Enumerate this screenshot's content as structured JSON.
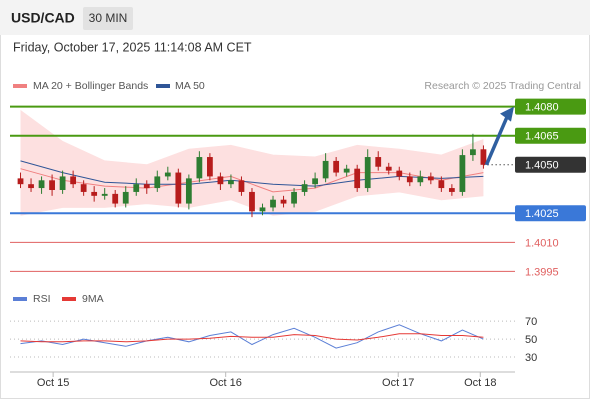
{
  "header": {
    "symbol": "USD/CAD",
    "interval": "30 MIN",
    "timestamp": "Friday, October 17, 2025 11:14:08 AM CET",
    "credit": "Research © 2025 Trading Central"
  },
  "chart_data": [
    {
      "type": "candlestick",
      "x": [
        0,
        1,
        2,
        3,
        4,
        5,
        6,
        7,
        8,
        9,
        10,
        11,
        12,
        13,
        14,
        15,
        16,
        17,
        18,
        19,
        20,
        21,
        22,
        23,
        24,
        25,
        26,
        27,
        28,
        29,
        30,
        31,
        32,
        33,
        34,
        35,
        36,
        37,
        38,
        39,
        40,
        41,
        42,
        43,
        44
      ],
      "open": [
        1.4043,
        1.404,
        1.4038,
        1.4042,
        1.4037,
        1.4044,
        1.404,
        1.4036,
        1.4034,
        1.4035,
        1.403,
        1.4036,
        1.404,
        1.4038,
        1.4044,
        1.4046,
        1.403,
        1.4043,
        1.4054,
        1.4044,
        1.404,
        1.4042,
        1.4036,
        1.4026,
        1.4028,
        1.4032,
        1.403,
        1.4036,
        1.404,
        1.4043,
        1.4052,
        1.4046,
        1.4048,
        1.4038,
        1.4054,
        1.4049,
        1.4047,
        1.4044,
        1.4041,
        1.4044,
        1.4042,
        1.4038,
        1.4036,
        1.4055,
        1.4058
      ],
      "high": [
        1.4046,
        1.4043,
        1.4044,
        1.4045,
        1.4047,
        1.4047,
        1.4042,
        1.4039,
        1.4038,
        1.4037,
        1.4039,
        1.4043,
        1.4042,
        1.4047,
        1.4049,
        1.4048,
        1.4045,
        1.4057,
        1.4056,
        1.4046,
        1.4045,
        1.4044,
        1.4038,
        1.403,
        1.4034,
        1.4034,
        1.4038,
        1.4042,
        1.4046,
        1.4056,
        1.4054,
        1.405,
        1.405,
        1.4058,
        1.4057,
        1.4051,
        1.4049,
        1.4046,
        1.4047,
        1.4046,
        1.4044,
        1.404,
        1.4058,
        1.4066,
        1.406
      ],
      "low": [
        1.4038,
        1.4036,
        1.4035,
        1.4034,
        1.4035,
        1.4038,
        1.4034,
        1.4031,
        1.4032,
        1.4028,
        1.4028,
        1.4034,
        1.4035,
        1.4036,
        1.4042,
        1.4028,
        1.4027,
        1.4041,
        1.4042,
        1.4037,
        1.4038,
        1.4034,
        1.4023,
        1.4024,
        1.4026,
        1.4028,
        1.4028,
        1.4034,
        1.4038,
        1.4041,
        1.4044,
        1.4044,
        1.4036,
        1.4036,
        1.4047,
        1.4045,
        1.4042,
        1.4039,
        1.4039,
        1.404,
        1.4036,
        1.4034,
        1.4034,
        1.4052,
        1.4048
      ],
      "close": [
        1.404,
        1.4038,
        1.4042,
        1.4037,
        1.4044,
        1.404,
        1.4036,
        1.4034,
        1.4035,
        1.403,
        1.4036,
        1.404,
        1.4038,
        1.4044,
        1.4046,
        1.403,
        1.4043,
        1.4054,
        1.4044,
        1.404,
        1.4042,
        1.4036,
        1.4026,
        1.4028,
        1.4032,
        1.403,
        1.4036,
        1.404,
        1.4043,
        1.4052,
        1.4046,
        1.4048,
        1.4038,
        1.4054,
        1.4049,
        1.4047,
        1.4044,
        1.4041,
        1.4044,
        1.4042,
        1.4038,
        1.4036,
        1.4055,
        1.4058,
        1.405
      ],
      "up_color": "#2e7d32",
      "down_color": "#b71c1c",
      "band": {
        "name": "MA 20 + Bollinger Bands",
        "color": "#f08080",
        "fill": "#fde0e0",
        "x": [
          0,
          4,
          8,
          12,
          16,
          20,
          24,
          28,
          32,
          36,
          40,
          44
        ],
        "upper": [
          1.4078,
          1.4062,
          1.4052,
          1.405,
          1.4058,
          1.406,
          1.4055,
          1.4054,
          1.406,
          1.4058,
          1.4055,
          1.4063
        ],
        "lower": [
          1.4024,
          1.4028,
          1.4028,
          1.403,
          1.4028,
          1.4032,
          1.4024,
          1.4026,
          1.4034,
          1.4036,
          1.4032,
          1.4034
        ],
        "values": [
          1.4048,
          1.4042,
          1.4039,
          1.4038,
          1.4041,
          1.4044,
          1.4036,
          1.4038,
          1.4046,
          1.4046,
          1.4042,
          1.4046
        ]
      },
      "series": [
        {
          "name": "MA 50",
          "color": "#2f5597",
          "x": [
            0,
            4,
            8,
            12,
            16,
            20,
            24,
            28,
            32,
            36,
            40,
            44
          ],
          "values": [
            1.4052,
            1.4046,
            1.4041,
            1.404,
            1.404,
            1.4042,
            1.404,
            1.4039,
            1.4042,
            1.4044,
            1.4043,
            1.4044
          ]
        }
      ],
      "levels": [
        {
          "value": 1.408,
          "label": "1.4080",
          "color": "#4a9a12",
          "style": "box"
        },
        {
          "value": 1.4065,
          "label": "1.4065",
          "color": "#4a9a12",
          "style": "box"
        },
        {
          "value": 1.405,
          "label": "1.4050",
          "color": "#333333",
          "style": "current"
        },
        {
          "value": 1.4025,
          "label": "1.4025",
          "color": "#3a78d8",
          "style": "box"
        },
        {
          "value": 1.401,
          "label": "1.4010",
          "color": "#e06060",
          "style": "text"
        },
        {
          "value": 1.3995,
          "label": "1.3995",
          "color": "#e06060",
          "style": "text"
        }
      ],
      "arrow_to": 1.408,
      "arrow_color": "#2f5fa0",
      "xlim": [
        -1,
        47
      ],
      "ylim": [
        1.3988,
        1.4086
      ],
      "xticks": [
        {
          "value": 3.1,
          "label": "Oct 15"
        },
        {
          "value": 19.5,
          "label": "Oct 16"
        },
        {
          "value": 35.9,
          "label": "Oct 17"
        },
        {
          "value": 43.7,
          "label": "Oct 18"
        }
      ]
    },
    {
      "type": "line",
      "series": [
        {
          "name": "RSI",
          "color": "#5b7fd6",
          "x": [
            0,
            2,
            4,
            6,
            8,
            10,
            12,
            14,
            16,
            18,
            20,
            22,
            24,
            26,
            28,
            30,
            32,
            34,
            36,
            38,
            40,
            42,
            44
          ],
          "values": [
            45,
            48,
            44,
            50,
            46,
            42,
            48,
            52,
            47,
            54,
            58,
            44,
            55,
            62,
            52,
            40,
            46,
            58,
            66,
            56,
            48,
            60,
            50
          ]
        },
        {
          "name": "9MA",
          "color": "#e53935",
          "x": [
            0,
            2,
            4,
            6,
            8,
            10,
            12,
            14,
            16,
            18,
            20,
            22,
            24,
            26,
            28,
            30,
            32,
            34,
            36,
            38,
            40,
            42,
            44
          ],
          "values": [
            48,
            47,
            47,
            48,
            48,
            47,
            48,
            50,
            50,
            51,
            53,
            52,
            52,
            55,
            54,
            50,
            49,
            52,
            56,
            56,
            54,
            54,
            52
          ]
        }
      ],
      "xlim": [
        -1,
        47
      ],
      "ylim": [
        20,
        78
      ],
      "yticks": [
        70,
        50,
        30
      ]
    }
  ]
}
